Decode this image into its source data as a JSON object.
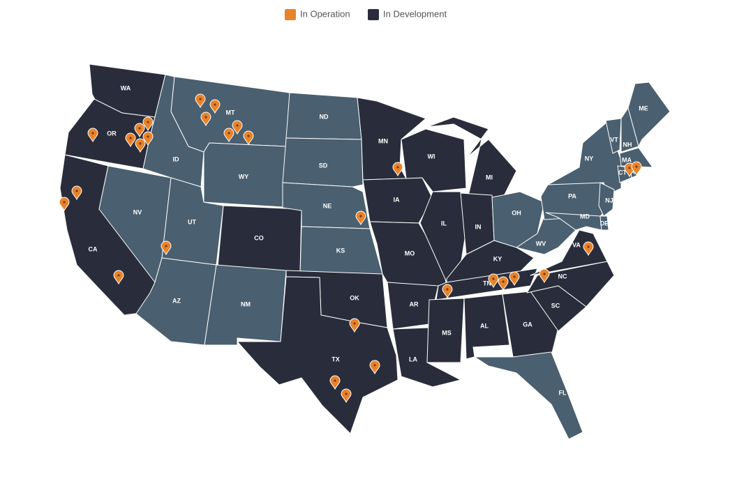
{
  "legend": [
    {
      "label": "In Operation",
      "color": "#e8832a"
    },
    {
      "label": "In Development",
      "color": "#292d3b"
    }
  ],
  "states": [
    "WA",
    "OR",
    "CA",
    "NV",
    "ID",
    "MT",
    "WY",
    "UT",
    "CO",
    "AZ",
    "NM",
    "ND",
    "SD",
    "NE",
    "KS",
    "OK",
    "TX",
    "MN",
    "IA",
    "MO",
    "AR",
    "LA",
    "WI",
    "MI",
    "IL",
    "IN",
    "OH",
    "KY",
    "TN",
    "MS",
    "AL",
    "GA",
    "FL",
    "SC",
    "NC",
    "VA",
    "WV",
    "PA",
    "NY",
    "NJ",
    "MD",
    "DE",
    "VT",
    "NH",
    "ME",
    "MA",
    "CT",
    "RI"
  ]
}
